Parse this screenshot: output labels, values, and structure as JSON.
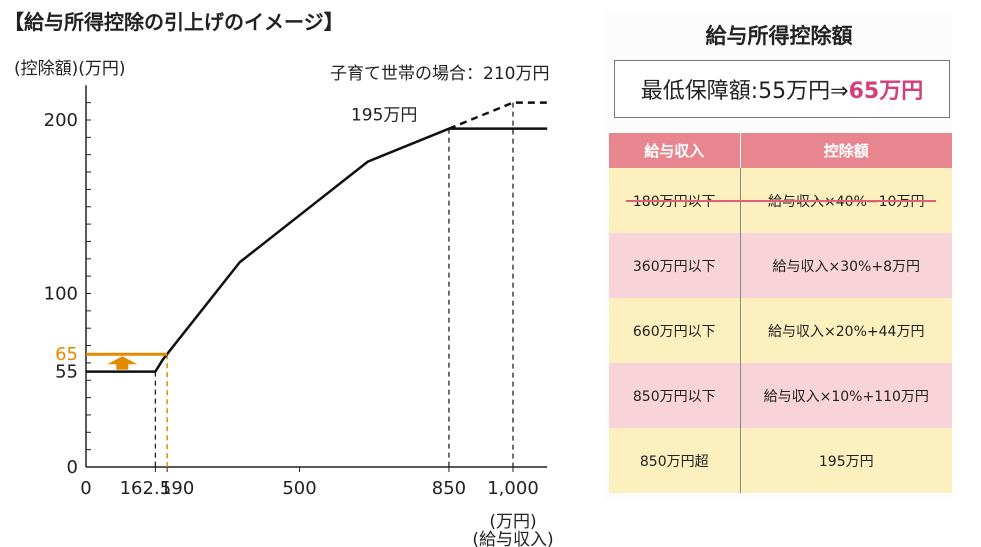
{
  "title": "【給与所得控除の引上げのイメージ】",
  "chart_data": {
    "type": "line",
    "ylabel": "(控除額)(万円)",
    "xlabel_unit": "(万円)",
    "xlabel": "(給与収入)",
    "x_ticks": [
      "0",
      "162.5",
      "190",
      "500",
      "850",
      "1,000"
    ],
    "y_ticks": [
      "0",
      "55",
      "100",
      "200"
    ],
    "y_tick_highlight": "65",
    "xlim": [
      0,
      1080
    ],
    "ylim": [
      0,
      220
    ],
    "series": [
      {
        "values_x": [
          0,
          162.5,
          180,
          360,
          660,
          850,
          1080
        ],
        "values_y": [
          55,
          55,
          62,
          118,
          176,
          195,
          195
        ]
      },
      {
        "values_x": [
          0,
          162.5,
          190
        ],
        "values_y": [
          65,
          65,
          65
        ]
      },
      {
        "values_x": [
          850,
          1000,
          1080
        ],
        "values_y": [
          195,
          210,
          210
        ]
      }
    ],
    "annotations": [
      "195万円",
      "子育て世帯の場合：210万円"
    ],
    "colors": {
      "line": "#111111",
      "highlight": "#e38a00"
    }
  },
  "panel": {
    "title": "給与所得控除額",
    "summary_prefix": "最低保障額:55万円⇒",
    "summary_highlight": "65万円",
    "headers": [
      "給与収入",
      "控除額"
    ],
    "rows": [
      {
        "income": "180万円以下",
        "deduction": "給与収入×40%−10万円",
        "struck": true
      },
      {
        "income": "360万円以下",
        "deduction": "給与収入×30%+8万円"
      },
      {
        "income": "660万円以下",
        "deduction": "給与収入×20%+44万円"
      },
      {
        "income": "850万円以下",
        "deduction": "給与収入×10%+110万円"
      },
      {
        "income": "850万円超",
        "deduction": "195万円"
      }
    ]
  }
}
